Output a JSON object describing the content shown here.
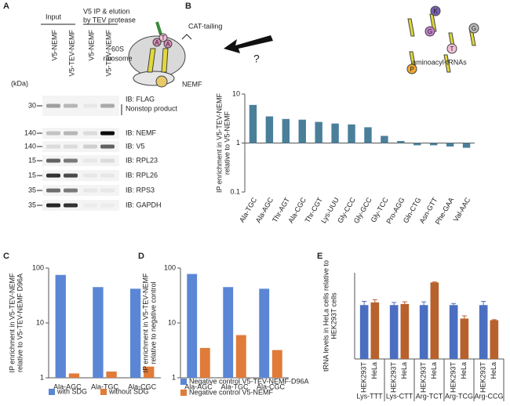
{
  "panels": [
    "A",
    "B",
    "C",
    "D",
    "E"
  ],
  "blot": {
    "input": "Input",
    "ip_header": [
      "V5 IP & elution",
      "by TEV protease"
    ],
    "lanes": [
      "V5-NEMF",
      "V5-TEV-NEMF",
      "V5-NEMF",
      "V5-TEV-NEMF"
    ],
    "unit": "(kDa)",
    "rows": [
      {
        "marker": "30",
        "label": "IB: FLAG",
        "note": "Nonstop product"
      },
      {
        "marker": "140",
        "label": "IB: NEMF"
      },
      {
        "marker": "140",
        "label": "IB: V5"
      },
      {
        "marker": "15",
        "label": "IB: RPL23"
      },
      {
        "marker": "15",
        "label": "IB: RPL26"
      },
      {
        "marker": "35",
        "label": "IB: RPS3"
      },
      {
        "marker": "35",
        "label": "IB: GAPDH"
      }
    ]
  },
  "diagram": {
    "ribosome": [
      "60S",
      "ribosome"
    ],
    "process": "CAT-tailing",
    "factor": "NEMF",
    "question": "?",
    "trna_label": "aminoacyl-tRNAs",
    "chain_letters": [
      "A",
      "T",
      "A"
    ],
    "trna_letters": [
      "K",
      "G",
      "T",
      "P",
      "G"
    ]
  },
  "chart_data": [
    {
      "type": "bar",
      "log_scale": true,
      "ylabel": [
        "IP enrichment in V5-TEV-NEMF",
        "relative to V5-NEMF"
      ],
      "categories": [
        "Ala-TGC",
        "Ala-AGC",
        "Thr-AGT",
        "Ala-CGC",
        "Thr-CGT",
        "Lys-UUU",
        "Gly-CCC",
        "Gly-GCC",
        "Gly-TCC",
        "Pro-AGG",
        "Gln-CTG",
        "Asn-GTT",
        "Phe-GAA",
        "Val-AAC"
      ],
      "values": [
        6,
        3.5,
        3.1,
        3.0,
        2.7,
        2.5,
        2.4,
        2.1,
        1.4,
        1.1,
        0.9,
        0.9,
        0.85,
        0.8
      ],
      "color": "#4a7f9a",
      "ylim": [
        0.1,
        10
      ],
      "yticks": [
        0.1,
        1,
        10
      ]
    },
    {
      "type": "grouped-bar",
      "log_scale": true,
      "ylabel": [
        "IP enrichment in V5-TEV-NEMF",
        "relative to V5-TEV-NEMF D96A"
      ],
      "categories": [
        "Ala-AGC",
        "Ala-TGC",
        "Ala-CGC"
      ],
      "series": [
        {
          "name": "with SDG",
          "color": "#5b86d6",
          "values": [
            75,
            45,
            42
          ]
        },
        {
          "name": "without SDG",
          "color": "#e07b39",
          "values": [
            1.2,
            1.3,
            1.6
          ]
        }
      ],
      "ylim": [
        1,
        100
      ],
      "yticks": [
        1,
        10,
        100
      ]
    },
    {
      "type": "grouped-bar",
      "log_scale": true,
      "ylabel": [
        "IP enrichment in V5-TEV-NEMF",
        "relative to negative control"
      ],
      "categories": [
        "Ala-AGC",
        "Ala-TGC",
        "Ala-CGC"
      ],
      "series": [
        {
          "name": "Negative control V5-TEV-NEMF-D96A",
          "color": "#5b86d6",
          "values": [
            78,
            45,
            42
          ]
        },
        {
          "name": "Negative control V5-NEMF",
          "color": "#e07b39",
          "values": [
            3.5,
            6,
            3.2
          ]
        }
      ],
      "ylim": [
        1,
        100
      ],
      "yticks": [
        1,
        10,
        100
      ]
    },
    {
      "type": "grouped-bar",
      "log_scale": false,
      "ylabel": [
        "tRNA levels in HeLa cells relative to",
        "HEK293T cells"
      ],
      "categories": [
        "Lys-TTT",
        "Lys-CTT",
        "Arg-TCT",
        "Arg-TCG",
        "Arg-CCG"
      ],
      "series": [
        {
          "name": "HEK293T",
          "color": "#4a6fc1",
          "values": [
            1.0,
            1.0,
            1.0,
            1.0,
            1.0
          ],
          "errors": [
            0.07,
            0.05,
            0.06,
            0.03,
            0.07
          ]
        },
        {
          "name": "HeLa",
          "color": "#b8612c",
          "values": [
            1.05,
            1.02,
            1.42,
            0.75,
            0.72
          ],
          "errors": [
            0.05,
            0.04,
            0.01,
            0.05,
            0.01
          ]
        }
      ],
      "ylim": [
        0,
        1.6
      ]
    }
  ]
}
